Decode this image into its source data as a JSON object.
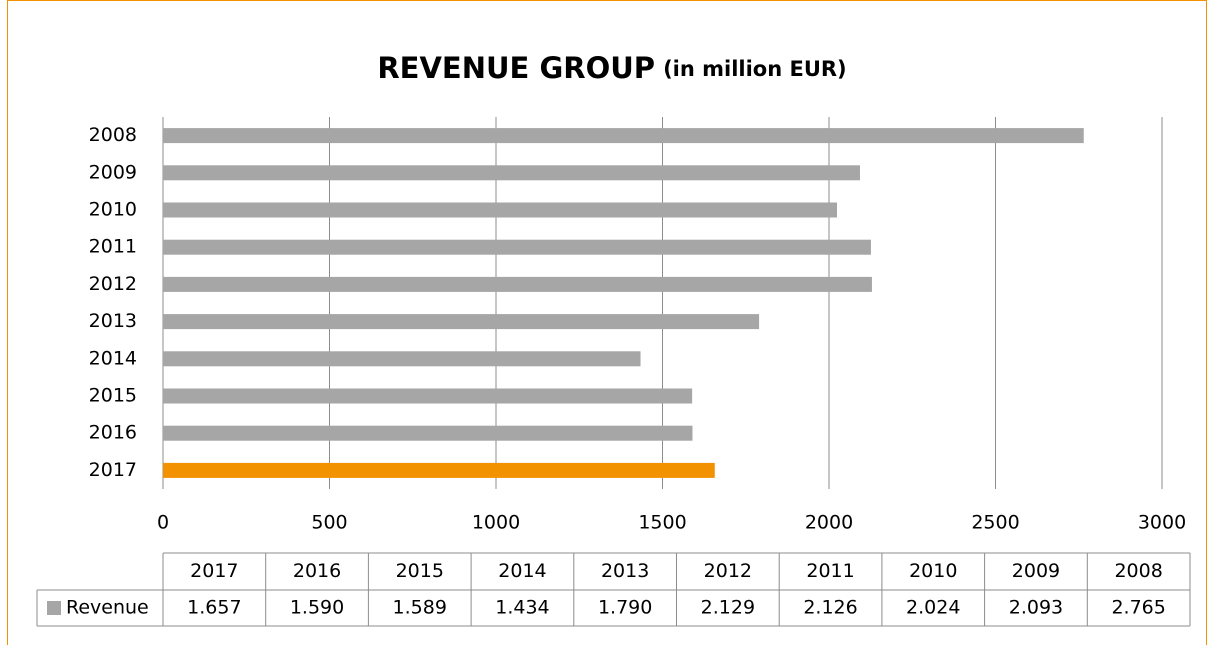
{
  "chart_data": {
    "type": "bar",
    "orientation": "horizontal",
    "title": "REVENUE GROUP",
    "subtitle": "(in million EUR)",
    "categories": [
      "2017",
      "2016",
      "2015",
      "2014",
      "2013",
      "2012",
      "2011",
      "2010",
      "2009",
      "2008"
    ],
    "series": [
      {
        "name": "Revenue",
        "color": "#a6a6a6",
        "point_colors": [
          "#f39200",
          "#a6a6a6",
          "#a6a6a6",
          "#a6a6a6",
          "#a6a6a6",
          "#a6a6a6",
          "#a6a6a6",
          "#a6a6a6",
          "#a6a6a6",
          "#a6a6a6"
        ],
        "values": [
          1657,
          1590,
          1589,
          1434,
          1790,
          2129,
          2126,
          2024,
          2093,
          2765
        ],
        "value_labels": [
          "1.657",
          "1.590",
          "1.589",
          "1.434",
          "1.790",
          "2.129",
          "2.126",
          "2.024",
          "2.093",
          "2.765"
        ]
      }
    ],
    "xlim": [
      0,
      3000
    ],
    "xticks": [
      0,
      500,
      1000,
      1500,
      2000,
      2500,
      3000
    ],
    "grid": true,
    "data_table": true
  }
}
